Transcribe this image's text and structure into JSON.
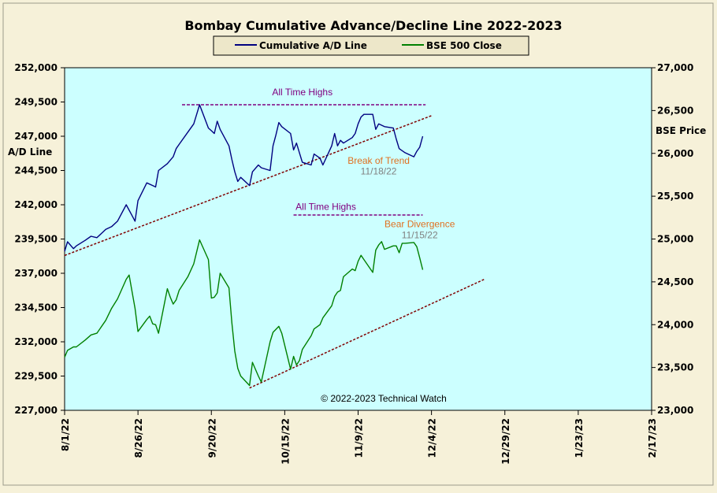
{
  "chart_data": {
    "type": "line",
    "title": "Bombay Cumulative Advance/Decline Line 2022-2023",
    "y_left_label": "A/D Line",
    "y_right_label": "BSE Price",
    "y_left_range": [
      227000,
      252000
    ],
    "y_right_range": [
      23000,
      27000
    ],
    "y_left_ticks": [
      "252,000",
      "249,500",
      "247,000",
      "244,500",
      "242,000",
      "239,500",
      "237,000",
      "234,500",
      "232,000",
      "229,500",
      "227,000"
    ],
    "y_right_ticks": [
      "27,000",
      "26,500",
      "26,000",
      "25,500",
      "25,000",
      "24,500",
      "24,000",
      "23,500",
      "23,000"
    ],
    "x_range": [
      "2022-08-01",
      "2023-02-17"
    ],
    "x_ticks": [
      "8/1/22",
      "8/26/22",
      "9/20/22",
      "10/15/22",
      "11/9/22",
      "12/4/22",
      "12/29/22",
      "1/23/23",
      "2/17/23"
    ],
    "grid": false,
    "legend": "top-center",
    "colors": {
      "ad_line": "#000080",
      "bse": "#008000",
      "plot_bg": "#ccffff",
      "trend": "#800000",
      "ath": "#800080",
      "break_label": "#e07020",
      "date_label": "#808080"
    },
    "series": [
      {
        "name": "Cumulative A/D Line",
        "axis": "left",
        "points": [
          [
            "2022-08-01",
            238600
          ],
          [
            "2022-08-02",
            239300
          ],
          [
            "2022-08-04",
            238800
          ],
          [
            "2022-08-05",
            239000
          ],
          [
            "2022-08-08",
            239400
          ],
          [
            "2022-08-10",
            239700
          ],
          [
            "2022-08-12",
            239600
          ],
          [
            "2022-08-15",
            240200
          ],
          [
            "2022-08-17",
            240400
          ],
          [
            "2022-08-19",
            240800
          ],
          [
            "2022-08-22",
            242000
          ],
          [
            "2022-08-24",
            241200
          ],
          [
            "2022-08-25",
            240800
          ],
          [
            "2022-08-26",
            242300
          ],
          [
            "2022-08-29",
            243600
          ],
          [
            "2022-08-31",
            243400
          ],
          [
            "2022-09-01",
            243300
          ],
          [
            "2022-09-02",
            244500
          ],
          [
            "2022-09-05",
            245000
          ],
          [
            "2022-09-07",
            245500
          ],
          [
            "2022-09-08",
            246100
          ],
          [
            "2022-09-09",
            246400
          ],
          [
            "2022-09-12",
            247300
          ],
          [
            "2022-09-14",
            247900
          ],
          [
            "2022-09-15",
            248600
          ],
          [
            "2022-09-16",
            249300
          ],
          [
            "2022-09-19",
            247600
          ],
          [
            "2022-09-20",
            247400
          ],
          [
            "2022-09-21",
            247200
          ],
          [
            "2022-09-22",
            248100
          ],
          [
            "2022-09-23",
            247500
          ],
          [
            "2022-09-26",
            246300
          ],
          [
            "2022-09-27",
            245300
          ],
          [
            "2022-09-28",
            244400
          ],
          [
            "2022-09-29",
            243700
          ],
          [
            "2022-09-30",
            244000
          ],
          [
            "2022-10-03",
            243400
          ],
          [
            "2022-10-04",
            244400
          ],
          [
            "2022-10-06",
            244900
          ],
          [
            "2022-10-07",
            244700
          ],
          [
            "2022-10-10",
            244500
          ],
          [
            "2022-10-11",
            246300
          ],
          [
            "2022-10-12",
            247100
          ],
          [
            "2022-10-13",
            248000
          ],
          [
            "2022-10-14",
            247700
          ],
          [
            "2022-10-17",
            247200
          ],
          [
            "2022-10-18",
            246000
          ],
          [
            "2022-10-19",
            246500
          ],
          [
            "2022-10-20",
            245800
          ],
          [
            "2022-10-21",
            245100
          ],
          [
            "2022-10-24",
            244900
          ],
          [
            "2022-10-25",
            245700
          ],
          [
            "2022-10-27",
            245400
          ],
          [
            "2022-10-28",
            244900
          ],
          [
            "2022-10-31",
            246300
          ],
          [
            "2022-11-01",
            247200
          ],
          [
            "2022-11-02",
            246300
          ],
          [
            "2022-11-03",
            246700
          ],
          [
            "2022-11-04",
            246500
          ],
          [
            "2022-11-07",
            246900
          ],
          [
            "2022-11-08",
            247200
          ],
          [
            "2022-11-09",
            247900
          ],
          [
            "2022-11-10",
            248400
          ],
          [
            "2022-11-11",
            248600
          ],
          [
            "2022-11-14",
            248600
          ],
          [
            "2022-11-15",
            247500
          ],
          [
            "2022-11-16",
            247900
          ],
          [
            "2022-11-18",
            247700
          ],
          [
            "2022-11-21",
            247600
          ],
          [
            "2022-11-22",
            246800
          ],
          [
            "2022-11-23",
            246100
          ],
          [
            "2022-11-25",
            245800
          ],
          [
            "2022-11-28",
            245500
          ],
          [
            "2022-11-29",
            245900
          ],
          [
            "2022-11-30",
            246200
          ],
          [
            "2022-12-01",
            247000
          ]
        ]
      },
      {
        "name": "BSE 500 Close",
        "axis": "right",
        "points": [
          [
            "2022-08-01",
            23620
          ],
          [
            "2022-08-02",
            23700
          ],
          [
            "2022-08-04",
            23740
          ],
          [
            "2022-08-05",
            23740
          ],
          [
            "2022-08-08",
            23820
          ],
          [
            "2022-08-10",
            23880
          ],
          [
            "2022-08-12",
            23900
          ],
          [
            "2022-08-15",
            24050
          ],
          [
            "2022-08-17",
            24190
          ],
          [
            "2022-08-19",
            24300
          ],
          [
            "2022-08-22",
            24530
          ],
          [
            "2022-08-23",
            24580
          ],
          [
            "2022-08-24",
            24380
          ],
          [
            "2022-08-25",
            24190
          ],
          [
            "2022-08-26",
            23920
          ],
          [
            "2022-08-29",
            24060
          ],
          [
            "2022-08-30",
            24100
          ],
          [
            "2022-08-31",
            24010
          ],
          [
            "2022-09-01",
            24000
          ],
          [
            "2022-09-02",
            23900
          ],
          [
            "2022-09-05",
            24420
          ],
          [
            "2022-09-06",
            24320
          ],
          [
            "2022-09-07",
            24240
          ],
          [
            "2022-09-08",
            24290
          ],
          [
            "2022-09-09",
            24400
          ],
          [
            "2022-09-12",
            24560
          ],
          [
            "2022-09-14",
            24710
          ],
          [
            "2022-09-15",
            24850
          ],
          [
            "2022-09-16",
            24990
          ],
          [
            "2022-09-19",
            24760
          ],
          [
            "2022-09-20",
            24310
          ],
          [
            "2022-09-21",
            24320
          ],
          [
            "2022-09-22",
            24370
          ],
          [
            "2022-09-23",
            24600
          ],
          [
            "2022-09-26",
            24430
          ],
          [
            "2022-09-27",
            24020
          ],
          [
            "2022-09-28",
            23690
          ],
          [
            "2022-09-29",
            23490
          ],
          [
            "2022-09-30",
            23400
          ],
          [
            "2022-10-03",
            23290
          ],
          [
            "2022-10-04",
            23560
          ],
          [
            "2022-10-06",
            23400
          ],
          [
            "2022-10-07",
            23330
          ],
          [
            "2022-10-10",
            23800
          ],
          [
            "2022-10-11",
            23910
          ],
          [
            "2022-10-13",
            23980
          ],
          [
            "2022-10-14",
            23900
          ],
          [
            "2022-10-17",
            23480
          ],
          [
            "2022-10-18",
            23630
          ],
          [
            "2022-10-19",
            23530
          ],
          [
            "2022-10-20",
            23580
          ],
          [
            "2022-10-21",
            23710
          ],
          [
            "2022-10-24",
            23870
          ],
          [
            "2022-10-25",
            23950
          ],
          [
            "2022-10-27",
            24000
          ],
          [
            "2022-10-28",
            24080
          ],
          [
            "2022-10-31",
            24220
          ],
          [
            "2022-11-01",
            24330
          ],
          [
            "2022-11-02",
            24380
          ],
          [
            "2022-11-03",
            24400
          ],
          [
            "2022-11-04",
            24560
          ],
          [
            "2022-11-07",
            24650
          ],
          [
            "2022-11-08",
            24630
          ],
          [
            "2022-11-09",
            24740
          ],
          [
            "2022-11-10",
            24810
          ],
          [
            "2022-11-11",
            24760
          ],
          [
            "2022-11-14",
            24610
          ],
          [
            "2022-11-15",
            24870
          ],
          [
            "2022-11-16",
            24930
          ],
          [
            "2022-11-17",
            24970
          ],
          [
            "2022-11-18",
            24880
          ],
          [
            "2022-11-21",
            24920
          ],
          [
            "2022-11-22",
            24920
          ],
          [
            "2022-11-23",
            24840
          ],
          [
            "2022-11-24",
            24950
          ],
          [
            "2022-11-25",
            24950
          ],
          [
            "2022-11-28",
            24960
          ],
          [
            "2022-11-29",
            24910
          ],
          [
            "2022-11-30",
            24780
          ],
          [
            "2022-12-01",
            24640
          ]
        ]
      }
    ],
    "trend_lines": [
      {
        "axis": "left",
        "from": [
          "2022-08-01",
          238300
        ],
        "to": [
          "2022-12-04",
          248500
        ]
      },
      {
        "axis": "right",
        "from": [
          "2022-10-03",
          23260
        ],
        "to": [
          "2022-12-22",
          24530
        ]
      }
    ],
    "ath_lines": [
      {
        "axis": "left",
        "from": [
          "2022-09-10",
          249300
        ],
        "to": [
          "2022-12-02",
          249300
        ]
      },
      {
        "axis": "right",
        "from": [
          "2022-10-18",
          25280
        ],
        "to": [
          "2022-12-01",
          25280
        ]
      }
    ],
    "annotations": [
      {
        "text": "All Time Highs",
        "axis": "left",
        "x": "2022-10-21",
        "y": 250000,
        "color": "ath"
      },
      {
        "text": "Break of Trend",
        "axis": "left",
        "x": "2022-11-16",
        "y": 245000,
        "color": "break_label"
      },
      {
        "text": "11/18/22",
        "axis": "left",
        "x": "2022-11-16",
        "y": 244200,
        "color": "date_label"
      },
      {
        "text": "All Time Highs",
        "axis": "right",
        "x": "2022-10-29",
        "y": 25340,
        "color": "ath"
      },
      {
        "text": "Bear Divergence",
        "axis": "right",
        "x": "2022-11-30",
        "y": 25140,
        "color": "break_label"
      },
      {
        "text": "11/15/22",
        "axis": "right",
        "x": "2022-11-30",
        "y": 25010,
        "color": "date_label"
      }
    ],
    "copyright": "© 2022-2023  Technical Watch"
  }
}
